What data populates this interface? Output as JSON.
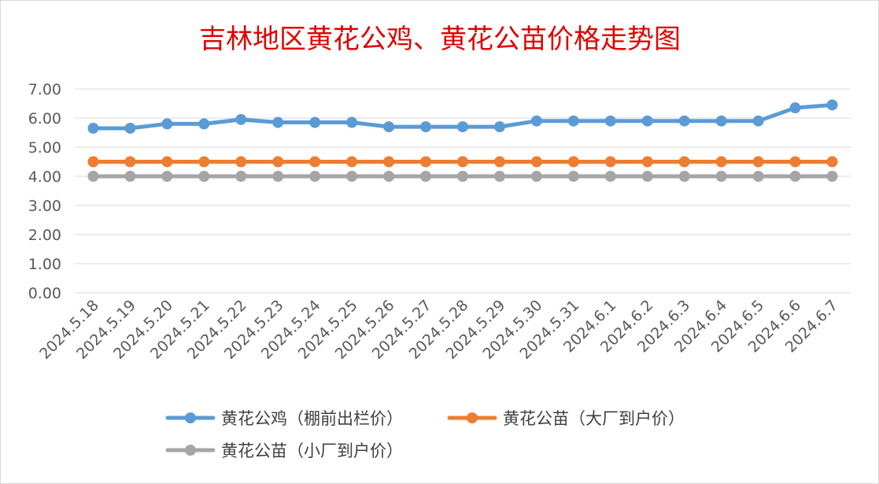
{
  "chart_data": {
    "type": "line",
    "title": "吉林地区黄花公鸡、黄花公苗价格走势图",
    "xlabel": "",
    "ylabel": "",
    "ylim": [
      0,
      7
    ],
    "yticks": [
      "0.00",
      "1.00",
      "2.00",
      "3.00",
      "4.00",
      "5.00",
      "6.00",
      "7.00"
    ],
    "grid": true,
    "legend_position": "bottom",
    "categories": [
      "2024.5.18",
      "2024.5.19",
      "2024.5.20",
      "2024.5.21",
      "2024.5.22",
      "2024.5.23",
      "2024.5.24",
      "2024.5.25",
      "2024.5.26",
      "2024.5.27",
      "2024.5.28",
      "2024.5.29",
      "2024.5.30",
      "2024.5.31",
      "2024.6.1",
      "2024.6.2",
      "2024.6.3",
      "2024.6.4",
      "2024.6.5",
      "2024.6.6",
      "2024.6.7"
    ],
    "series": [
      {
        "name": "黄花公鸡（棚前出栏价）",
        "color": "#5b9bd5",
        "values": [
          5.65,
          5.65,
          5.8,
          5.8,
          5.95,
          5.85,
          5.85,
          5.85,
          5.7,
          5.7,
          5.7,
          5.7,
          5.9,
          5.9,
          5.9,
          5.9,
          5.9,
          5.9,
          5.9,
          6.35,
          6.45
        ]
      },
      {
        "name": "黄花公苗（大厂到户价）",
        "color": "#ed7d31",
        "values": [
          4.5,
          4.5,
          4.5,
          4.5,
          4.5,
          4.5,
          4.5,
          4.5,
          4.5,
          4.5,
          4.5,
          4.5,
          4.5,
          4.5,
          4.5,
          4.5,
          4.5,
          4.5,
          4.5,
          4.5,
          4.5
        ]
      },
      {
        "name": "黄花公苗（小厂到户价）",
        "color": "#a5a5a5",
        "values": [
          4.0,
          4.0,
          4.0,
          4.0,
          4.0,
          4.0,
          4.0,
          4.0,
          4.0,
          4.0,
          4.0,
          4.0,
          4.0,
          4.0,
          4.0,
          4.0,
          4.0,
          4.0,
          4.0,
          4.0,
          4.0
        ]
      }
    ]
  }
}
